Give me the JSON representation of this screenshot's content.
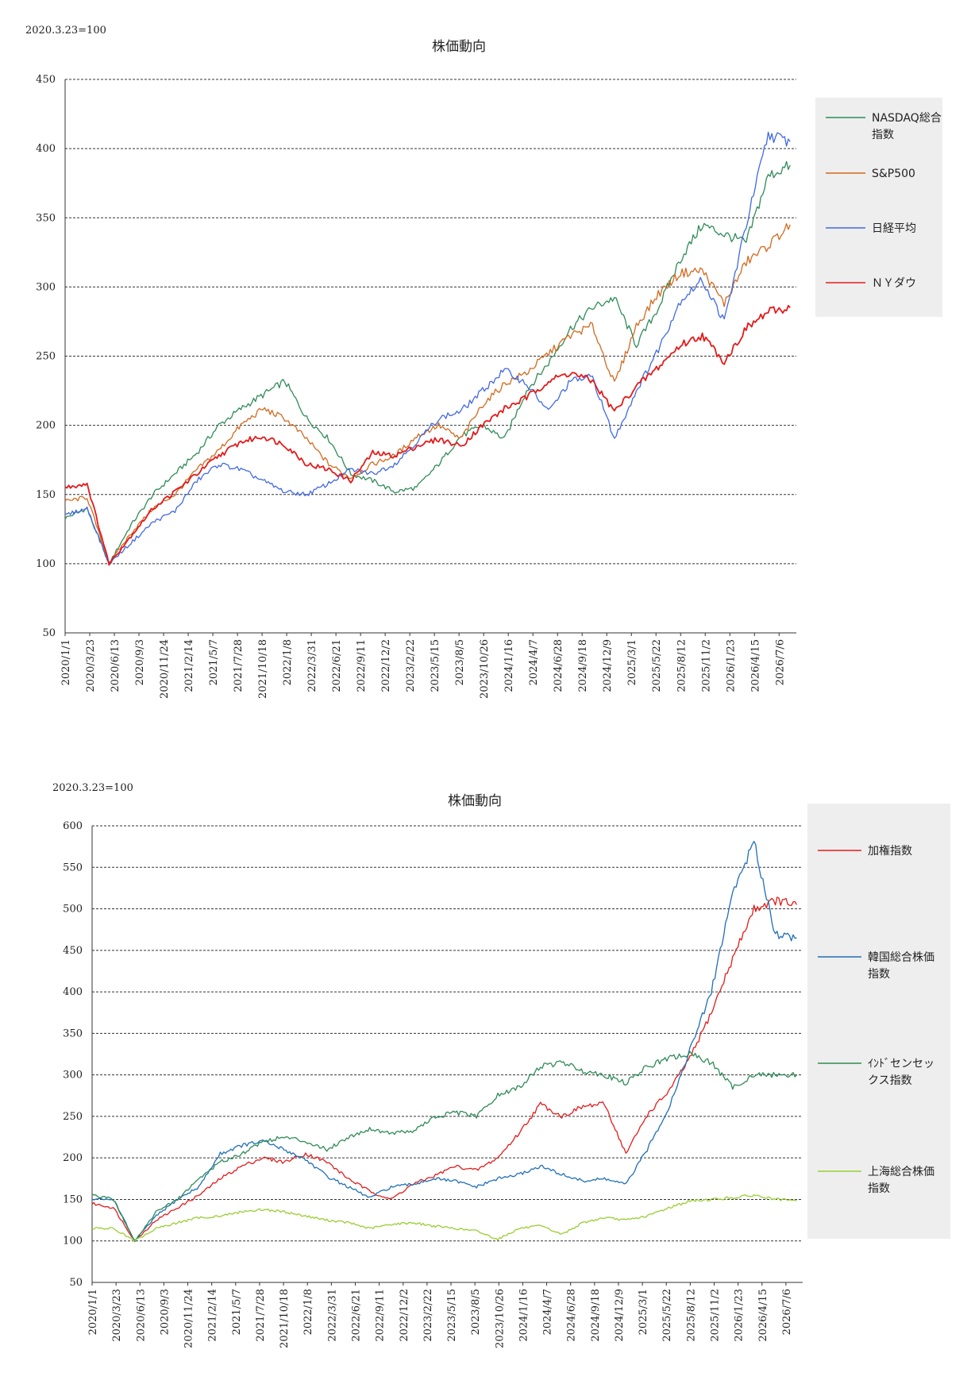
{
  "chart_data": [
    {
      "type": "line",
      "note": "2020.3.23=100",
      "title": "株価動向",
      "ylim": [
        50,
        450
      ],
      "yticks": [
        50,
        100,
        150,
        200,
        250,
        300,
        350,
        400,
        450
      ],
      "grid": true,
      "legend_position": "right",
      "x_tick_labels": [
        "2020/1/1",
        "2020/3/23",
        "2020/6/13",
        "2020/9/3",
        "2020/11/24",
        "2021/2/14",
        "2021/5/7",
        "2021/7/28",
        "2021/10/18",
        "2022/1/8",
        "2022/3/31",
        "2022/6/21",
        "2022/9/11",
        "2022/12/2",
        "2023/2/22",
        "2023/5/15",
        "2023/8/5",
        "2023/10/26",
        "2024/1/16",
        "2024/4/7",
        "2024/6/28",
        "2024/9/18",
        "2024/12/9",
        "2025/3/1",
        "2025/5/22",
        "2025/8/12",
        "2025/11/2",
        "2026/1/23",
        "2026/4/15",
        "2026/7/6"
      ],
      "series": [
        {
          "name": "NASDAQ総合指数",
          "color": "#2e8b57",
          "values": [
            133,
            140,
            100,
            128,
            150,
            165,
            180,
            200,
            212,
            222,
            232,
            205,
            190,
            165,
            160,
            152,
            155,
            172,
            192,
            200,
            190,
            225,
            245,
            270,
            285,
            292,
            258,
            285,
            320,
            345,
            338,
            332,
            380,
            388
          ]
        },
        {
          "name": "S&P500",
          "color": "#d2691e",
          "values": [
            145,
            148,
            100,
            122,
            140,
            150,
            168,
            182,
            200,
            212,
            205,
            190,
            172,
            162,
            172,
            178,
            192,
            200,
            190,
            215,
            230,
            238,
            252,
            265,
            272,
            230,
            272,
            295,
            310,
            312,
            288,
            318,
            330,
            345
          ]
        },
        {
          "name": "日経平均",
          "color": "#4169e1",
          "values": [
            135,
            140,
            100,
            115,
            130,
            138,
            160,
            172,
            168,
            160,
            152,
            150,
            158,
            168,
            165,
            172,
            188,
            205,
            210,
            225,
            240,
            230,
            210,
            232,
            235,
            190,
            225,
            255,
            290,
            305,
            275,
            345,
            410,
            405
          ]
        },
        {
          "name": "ＮＹダウ",
          "color": "#e31b1b",
          "values": [
            155,
            158,
            100,
            120,
            140,
            152,
            165,
            178,
            188,
            192,
            186,
            172,
            168,
            160,
            180,
            178,
            185,
            190,
            185,
            200,
            212,
            220,
            232,
            238,
            232,
            210,
            228,
            242,
            258,
            265,
            246,
            270,
            282,
            285
          ]
        }
      ]
    },
    {
      "type": "line",
      "note": "2020.3.23=100",
      "title": "株価動向",
      "ylim": [
        50,
        600
      ],
      "yticks": [
        50,
        100,
        150,
        200,
        250,
        300,
        350,
        400,
        450,
        500,
        550,
        600
      ],
      "grid": true,
      "legend_position": "right",
      "x_tick_labels": [
        "2020/1/1",
        "2020/3/23",
        "2020/6/13",
        "2020/9/3",
        "2020/11/24",
        "2021/2/14",
        "2021/5/7",
        "2021/7/28",
        "2021/10/18",
        "2022/1/8",
        "2022/3/31",
        "2022/6/21",
        "2022/9/11",
        "2022/12/2",
        "2023/2/22",
        "2023/5/15",
        "2023/8/5",
        "2023/10/26",
        "2024/1/16",
        "2024/4/7",
        "2024/6/28",
        "2024/9/18",
        "2024/12/9",
        "2025/3/1",
        "2025/5/22",
        "2025/8/12",
        "2025/11/2",
        "2026/1/23",
        "2026/4/15",
        "2026/7/6"
      ],
      "series": [
        {
          "name": "加権指数",
          "color": "#e31b1b",
          "values": [
            145,
            140,
            100,
            125,
            140,
            155,
            175,
            190,
            200,
            195,
            205,
            195,
            175,
            160,
            150,
            168,
            178,
            190,
            185,
            200,
            230,
            265,
            250,
            262,
            265,
            205,
            252,
            280,
            320,
            375,
            440,
            500,
            510,
            505
          ]
        },
        {
          "name": "韓国総合株価指数",
          "color": "#1f6fb8",
          "values": [
            150,
            150,
            100,
            130,
            150,
            165,
            205,
            215,
            220,
            210,
            198,
            178,
            165,
            152,
            165,
            168,
            175,
            172,
            165,
            175,
            180,
            190,
            180,
            172,
            175,
            168,
            210,
            260,
            330,
            400,
            520,
            580,
            470,
            465
          ]
        },
        {
          "name": "ｲﾝﾄﾞセンセックス指数",
          "color": "#2e8b57",
          "values": [
            155,
            150,
            100,
            135,
            150,
            175,
            195,
            205,
            220,
            225,
            220,
            210,
            225,
            235,
            230,
            232,
            248,
            255,
            250,
            275,
            285,
            310,
            315,
            305,
            300,
            290,
            310,
            320,
            325,
            315,
            285,
            300,
            300,
            300
          ]
        },
        {
          "name": "上海総合株価指数",
          "color": "#9acd32",
          "values": [
            115,
            115,
            100,
            115,
            122,
            128,
            130,
            135,
            138,
            135,
            130,
            125,
            122,
            115,
            120,
            122,
            118,
            115,
            112,
            102,
            115,
            118,
            108,
            122,
            128,
            125,
            130,
            140,
            148,
            150,
            152,
            155,
            150,
            148
          ]
        }
      ]
    }
  ]
}
